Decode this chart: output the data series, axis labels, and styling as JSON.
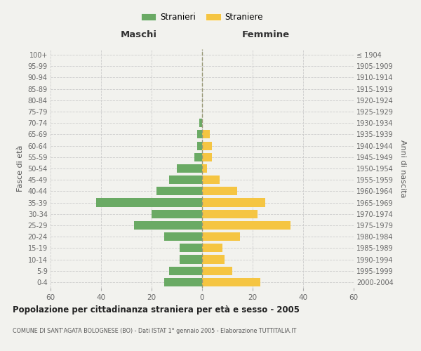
{
  "age_groups": [
    "0-4",
    "5-9",
    "10-14",
    "15-19",
    "20-24",
    "25-29",
    "30-34",
    "35-39",
    "40-44",
    "45-49",
    "50-54",
    "55-59",
    "60-64",
    "65-69",
    "70-74",
    "75-79",
    "80-84",
    "85-89",
    "90-94",
    "95-99",
    "100+"
  ],
  "birth_years": [
    "2000-2004",
    "1995-1999",
    "1990-1994",
    "1985-1989",
    "1980-1984",
    "1975-1979",
    "1970-1974",
    "1965-1969",
    "1960-1964",
    "1955-1959",
    "1950-1954",
    "1945-1949",
    "1940-1944",
    "1935-1939",
    "1930-1934",
    "1925-1929",
    "1920-1924",
    "1915-1919",
    "1910-1914",
    "1905-1909",
    "≤ 1904"
  ],
  "maschi": [
    15,
    13,
    9,
    9,
    15,
    27,
    20,
    42,
    18,
    13,
    10,
    3,
    2,
    2,
    1,
    0,
    0,
    0,
    0,
    0,
    0
  ],
  "femmine": [
    23,
    12,
    9,
    8,
    15,
    35,
    22,
    25,
    14,
    7,
    2,
    4,
    4,
    3,
    0,
    0,
    0,
    0,
    0,
    0,
    0
  ],
  "color_maschi": "#6aaa64",
  "color_femmine": "#f5c542",
  "bg_color": "#f2f2ee",
  "grid_color": "#cccccc",
  "title": "Popolazione per cittadinanza straniera per età e sesso - 2005",
  "subtitle": "COMUNE DI SANT'AGATA BOLOGNESE (BO) - Dati ISTAT 1° gennaio 2005 - Elaborazione TUTTITALIA.IT",
  "xlabel_left": "Maschi",
  "xlabel_right": "Femmine",
  "ylabel_left": "Fasce di età",
  "ylabel_right": "Anni di nascita",
  "legend_stranieri": "Stranieri",
  "legend_straniere": "Straniere",
  "xlim": 60
}
